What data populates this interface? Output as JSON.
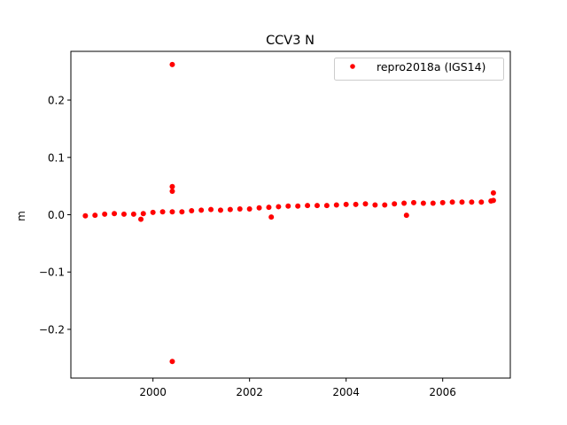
{
  "chart_data": {
    "type": "scatter",
    "title": "CCV3 N",
    "xlabel": "",
    "ylabel": "m",
    "xlim": [
      1998.3,
      2007.4
    ],
    "ylim": [
      -0.285,
      0.285
    ],
    "x_ticks": [
      2000,
      2002,
      2004,
      2006
    ],
    "y_ticks": [
      -0.2,
      -0.1,
      0.0,
      0.1,
      0.2
    ],
    "x_tick_labels": [
      "2000",
      "2002",
      "2004",
      "2006"
    ],
    "y_tick_labels": [
      "−0.2",
      "−0.1",
      "0.0",
      "0.1",
      "0.2"
    ],
    "grid": false,
    "legend": {
      "position": "upper right",
      "entries": [
        "repro2018a (IGS14)"
      ]
    },
    "series": [
      {
        "name": "repro2018a (IGS14)",
        "color": "#ff0000",
        "marker": "circle",
        "x": [
          1998.6,
          1998.8,
          1999.0,
          1999.2,
          1999.4,
          1999.6,
          1999.8,
          2000.0,
          2000.2,
          2000.4,
          2000.6,
          2000.8,
          2001.0,
          2001.2,
          2001.4,
          2001.6,
          2001.8,
          2002.0,
          2002.2,
          2002.4,
          2002.6,
          2002.8,
          2003.0,
          2003.2,
          2003.4,
          2003.6,
          2003.8,
          2004.0,
          2004.2,
          2004.4,
          2004.6,
          2004.8,
          2005.0,
          2005.2,
          2005.4,
          2005.6,
          2005.8,
          2006.0,
          2006.2,
          2006.4,
          2006.6,
          2006.8,
          2007.0,
          2007.05,
          2000.4,
          2000.4,
          2000.4,
          2000.4,
          1999.75,
          2002.45,
          2005.25,
          2007.05
        ],
        "y": [
          -0.002,
          -0.001,
          0.001,
          0.002,
          0.001,
          0.001,
          0.002,
          0.004,
          0.005,
          0.005,
          0.005,
          0.007,
          0.008,
          0.009,
          0.008,
          0.009,
          0.01,
          0.01,
          0.012,
          0.013,
          0.014,
          0.015,
          0.015,
          0.016,
          0.016,
          0.016,
          0.017,
          0.018,
          0.018,
          0.019,
          0.017,
          0.017,
          0.019,
          0.02,
          0.021,
          0.02,
          0.02,
          0.021,
          0.022,
          0.022,
          0.022,
          0.022,
          0.024,
          0.025,
          0.262,
          0.049,
          0.041,
          -0.256,
          -0.008,
          -0.004,
          -0.001,
          0.038
        ]
      }
    ]
  }
}
